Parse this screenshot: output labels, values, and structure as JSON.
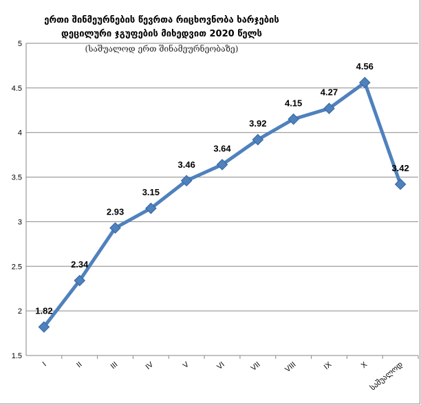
{
  "chart_data": {
    "type": "line",
    "title_lines": [
      "ერთი შინმეურნების წევრთა რიცხოვნობა ხარჯების",
      "დეცილური ჯგუფების მიხედვით 2020 წელს"
    ],
    "subtitle": "(საშუალოდ ერთ შინამეურნეობაზე)",
    "categories": [
      "I",
      "II",
      "III",
      "IV",
      "V",
      "VI",
      "VII",
      "VIII",
      "IX",
      "X",
      "საშუალოდ"
    ],
    "values": [
      1.82,
      2.34,
      2.93,
      3.15,
      3.46,
      3.64,
      3.92,
      4.15,
      4.27,
      4.56,
      3.42
    ],
    "data_labels": [
      "1.82",
      "2.34",
      "2.93",
      "3.15",
      "3.46",
      "3.64",
      "3.92",
      "4.15",
      "4.27",
      "4.56",
      "3.42"
    ],
    "yticks": [
      "1.5",
      "2",
      "2.5",
      "3",
      "3.5",
      "4",
      "4.5",
      "5"
    ],
    "ylim": [
      1.5,
      5
    ],
    "grid": true,
    "legend": "none",
    "colors": {
      "line": "#4f81bd",
      "marker": "#4f81bd",
      "marker_edge": "#3a6aa3",
      "grid": "#868686"
    }
  }
}
